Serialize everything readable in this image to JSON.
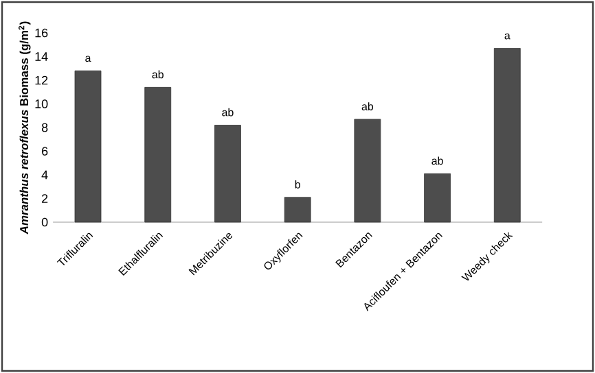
{
  "chart_data": {
    "type": "bar",
    "ylabel": "*Amranthus retroflexus* Biomass (g/m$^{2}$)",
    "categories": [
      "Trifluralin",
      "Ethalfluralin",
      "Metribuzine",
      "Oxyflorfen",
      "Bentazon",
      "Acifloufen + Bentazon",
      "Weedy check"
    ],
    "values": [
      12.8,
      11.4,
      8.2,
      2.1,
      8.7,
      4.1,
      14.7
    ],
    "color": "#4d4d4d",
    "ylim": [
      0,
      16
    ],
    "yticks": [
      0,
      2,
      4,
      6,
      8,
      10,
      12,
      14,
      16
    ],
    "grid": false,
    "annotations": [
      {
        "text": "a",
        "x": "Trifluralin",
        "y": 12.8
      },
      {
        "text": "ab",
        "x": "Ethalfluralin",
        "y": 11.4
      },
      {
        "text": "ab",
        "x": "Metribuzine",
        "y": 8.2
      },
      {
        "text": "b",
        "x": "Oxyflorfen",
        "y": 2.1
      },
      {
        "text": "ab",
        "x": "Bentazon",
        "y": 8.7
      },
      {
        "text": "ab",
        "x": "Acifloufen + Bentazon",
        "y": 4.1
      },
      {
        "text": "a",
        "x": "Weedy check",
        "y": 14.7
      }
    ]
  }
}
